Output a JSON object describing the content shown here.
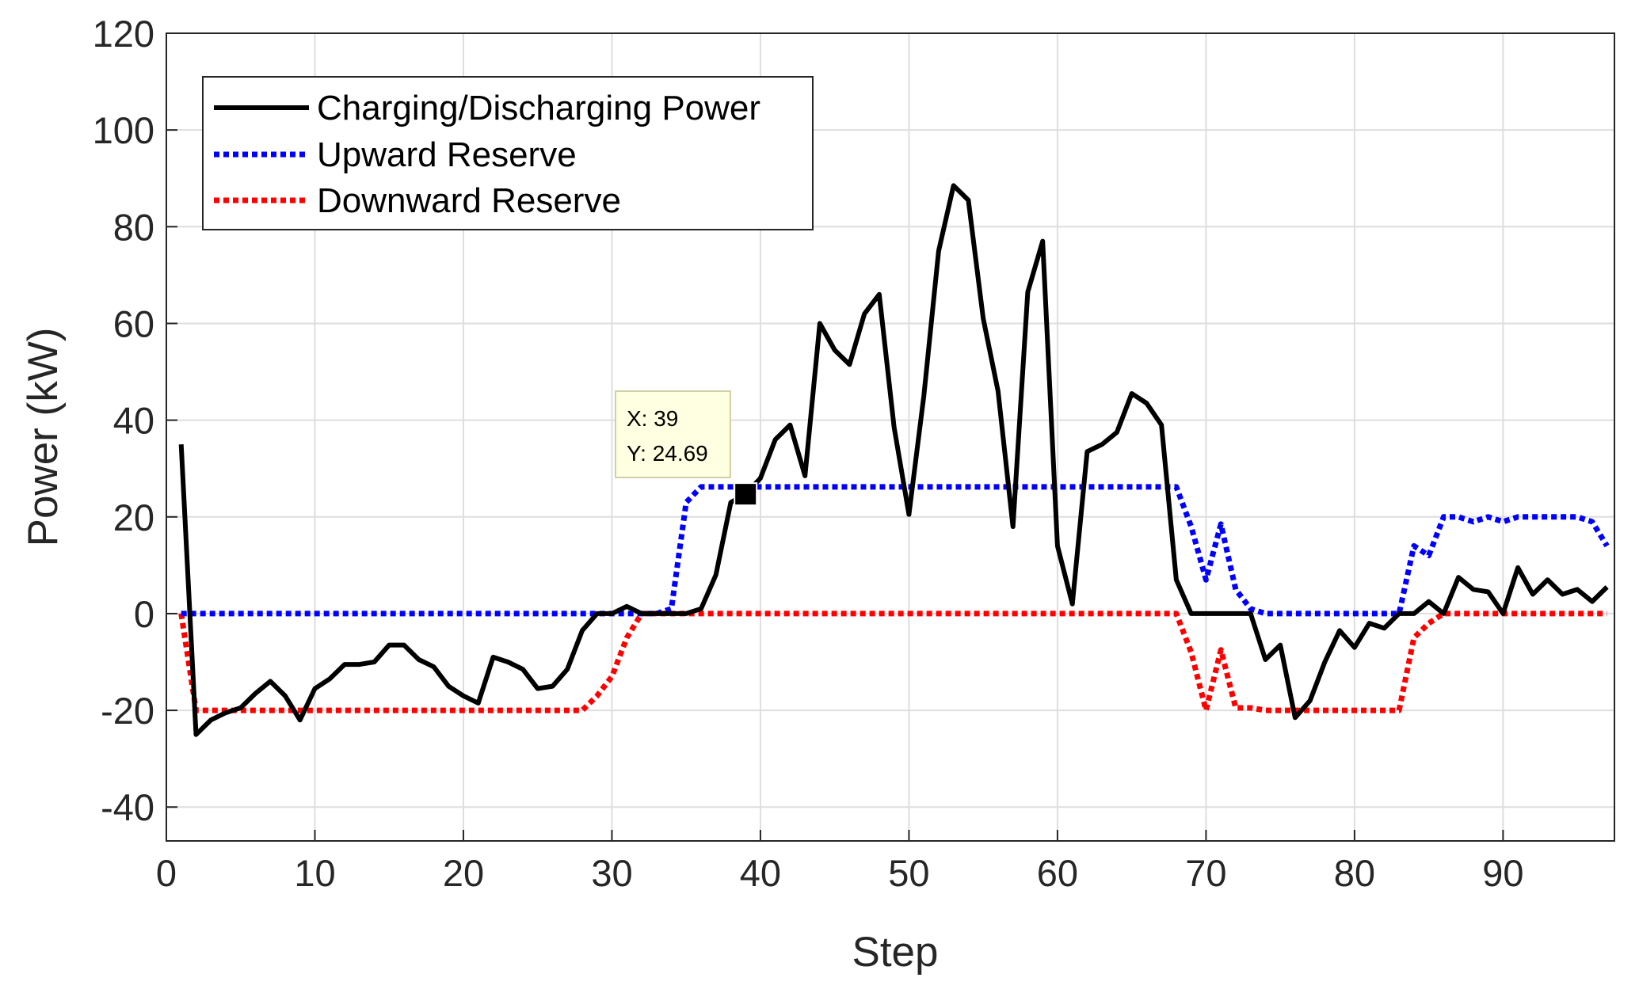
{
  "chart_data": {
    "type": "line",
    "title": "",
    "xlabel": "Step",
    "ylabel": "Power (kW)",
    "xlim": [
      0,
      97.5
    ],
    "ylim": [
      -47,
      120
    ],
    "xticks": [
      0,
      10,
      20,
      30,
      40,
      50,
      60,
      70,
      80,
      90
    ],
    "yticks": [
      -40,
      -20,
      0,
      20,
      40,
      60,
      80,
      100,
      120
    ],
    "grid": true,
    "legend_position": "top-left",
    "series": [
      {
        "name": "Charging/Discharging Power",
        "color": "#000000",
        "style": "solid",
        "x": [
          1,
          2,
          3,
          4,
          5,
          6,
          7,
          8,
          9,
          10,
          11,
          12,
          13,
          14,
          15,
          16,
          17,
          18,
          19,
          20,
          21,
          22,
          23,
          24,
          25,
          26,
          27,
          28,
          29,
          30,
          31,
          32,
          33,
          34,
          35,
          36,
          37,
          38,
          39,
          40,
          41,
          42,
          43,
          44,
          45,
          46,
          47,
          48,
          49,
          50,
          51,
          52,
          53,
          54,
          55,
          56,
          57,
          58,
          59,
          60,
          61,
          62,
          63,
          64,
          65,
          66,
          67,
          68,
          69,
          70,
          71,
          72,
          73,
          74,
          75,
          76,
          77,
          78,
          79,
          80,
          81,
          82,
          83,
          84,
          85,
          86,
          87,
          88,
          89,
          90,
          91,
          92,
          93,
          94,
          95,
          96,
          97
        ],
        "values": [
          35,
          -25,
          -22,
          -20.5,
          -19.5,
          -16.5,
          -14,
          -17,
          -22,
          -15.5,
          -13.5,
          -10.5,
          -10.5,
          -10,
          -6.5,
          -6.5,
          -9.5,
          -11,
          -15,
          -17,
          -18.5,
          -9,
          -10,
          -11.5,
          -15.5,
          -15,
          -11.5,
          -3.5,
          0,
          0,
          1.5,
          0,
          0,
          0,
          0,
          1,
          8,
          23,
          24.69,
          28,
          36,
          39,
          28.5,
          60,
          54.5,
          51.5,
          62,
          66,
          38.5,
          20.5,
          45,
          75,
          88.5,
          85.5,
          61,
          46,
          18,
          66.5,
          77,
          14,
          2,
          33.5,
          35,
          37.5,
          45.5,
          43.5,
          39,
          7,
          0,
          0,
          0,
          0,
          0,
          -9.5,
          -6.5,
          -21.5,
          -18,
          -10,
          -3.5,
          -7,
          -2,
          -3,
          0,
          0,
          2.5,
          0,
          7.5,
          5,
          4.5,
          0,
          9.5,
          4,
          7,
          4,
          5,
          2.5,
          5.5
        ]
      },
      {
        "name": "Upward Reserve",
        "color": "#0000ff",
        "style": "dotted",
        "x": [
          1,
          2,
          3,
          4,
          5,
          6,
          7,
          8,
          9,
          10,
          11,
          12,
          13,
          14,
          15,
          16,
          17,
          18,
          19,
          20,
          21,
          22,
          23,
          24,
          25,
          26,
          27,
          28,
          29,
          30,
          31,
          32,
          33,
          34,
          35,
          36,
          37,
          38,
          39,
          40,
          41,
          42,
          43,
          44,
          45,
          46,
          47,
          48,
          49,
          50,
          51,
          52,
          53,
          54,
          55,
          56,
          57,
          58,
          59,
          60,
          61,
          62,
          63,
          64,
          65,
          66,
          67,
          68,
          69,
          70,
          71,
          72,
          73,
          74,
          75,
          76,
          77,
          78,
          79,
          80,
          81,
          82,
          83,
          84,
          85,
          86,
          87,
          88,
          89,
          90,
          91,
          92,
          93,
          94,
          95,
          96,
          97
        ],
        "values": [
          0,
          0,
          0,
          0,
          0,
          0,
          0,
          0,
          0,
          0,
          0,
          0,
          0,
          0,
          0,
          0,
          0,
          0,
          0,
          0,
          0,
          0,
          0,
          0,
          0,
          0,
          0,
          0,
          0,
          0,
          0,
          0,
          0,
          1,
          23,
          26.2,
          26.2,
          26.2,
          26.2,
          26.2,
          26.2,
          26.2,
          26.2,
          26.2,
          26.2,
          26.2,
          26.2,
          26.2,
          26.2,
          26.2,
          26.2,
          26.2,
          26.2,
          26.2,
          26.2,
          26.2,
          26.2,
          26.2,
          26.2,
          26.2,
          26.2,
          26.2,
          26.2,
          26.2,
          26.2,
          26.2,
          26.2,
          26.2,
          18,
          7,
          18.5,
          5,
          1,
          0,
          0,
          0,
          0,
          0,
          0,
          0,
          0,
          0,
          0,
          14,
          12,
          20,
          20,
          19,
          20,
          19,
          20,
          20,
          20,
          20,
          20,
          19,
          14
        ]
      },
      {
        "name": "Downward Reserve",
        "color": "#ff0000",
        "style": "dotted",
        "x": [
          1,
          2,
          3,
          4,
          5,
          6,
          7,
          8,
          9,
          10,
          11,
          12,
          13,
          14,
          15,
          16,
          17,
          18,
          19,
          20,
          21,
          22,
          23,
          24,
          25,
          26,
          27,
          28,
          29,
          30,
          31,
          32,
          33,
          34,
          35,
          36,
          37,
          38,
          39,
          40,
          41,
          42,
          43,
          44,
          45,
          46,
          47,
          48,
          49,
          50,
          51,
          52,
          53,
          54,
          55,
          56,
          57,
          58,
          59,
          60,
          61,
          62,
          63,
          64,
          65,
          66,
          67,
          68,
          69,
          70,
          71,
          72,
          73,
          74,
          75,
          76,
          77,
          78,
          79,
          80,
          81,
          82,
          83,
          84,
          85,
          86,
          87,
          88,
          89,
          90,
          91,
          92,
          93,
          94,
          95,
          96,
          97
        ],
        "values": [
          0,
          -20,
          -20,
          -20,
          -20,
          -20,
          -20,
          -20,
          -20,
          -20,
          -20,
          -20,
          -20,
          -20,
          -20,
          -20,
          -20,
          -20,
          -20,
          -20,
          -20,
          -20,
          -20,
          -20,
          -20,
          -20,
          -20,
          -20,
          -17,
          -13,
          -5,
          0,
          0,
          0,
          0,
          0,
          0,
          0,
          0,
          0,
          0,
          0,
          0,
          0,
          0,
          0,
          0,
          0,
          0,
          0,
          0,
          0,
          0,
          0,
          0,
          0,
          0,
          0,
          0,
          0,
          0,
          0,
          0,
          0,
          0,
          0,
          0,
          0,
          -8,
          -20,
          -7.5,
          -19.5,
          -19.5,
          -20,
          -20,
          -20,
          -20,
          -20,
          -20,
          -20,
          -20,
          -20,
          -20,
          -5,
          -2,
          0,
          0,
          0,
          0,
          0,
          0,
          0,
          0,
          0,
          0,
          0,
          0
        ]
      }
    ],
    "datatip": {
      "x": 39,
      "y": 24.69,
      "x_text": "X: 39",
      "y_text": "Y: 24.69"
    }
  }
}
